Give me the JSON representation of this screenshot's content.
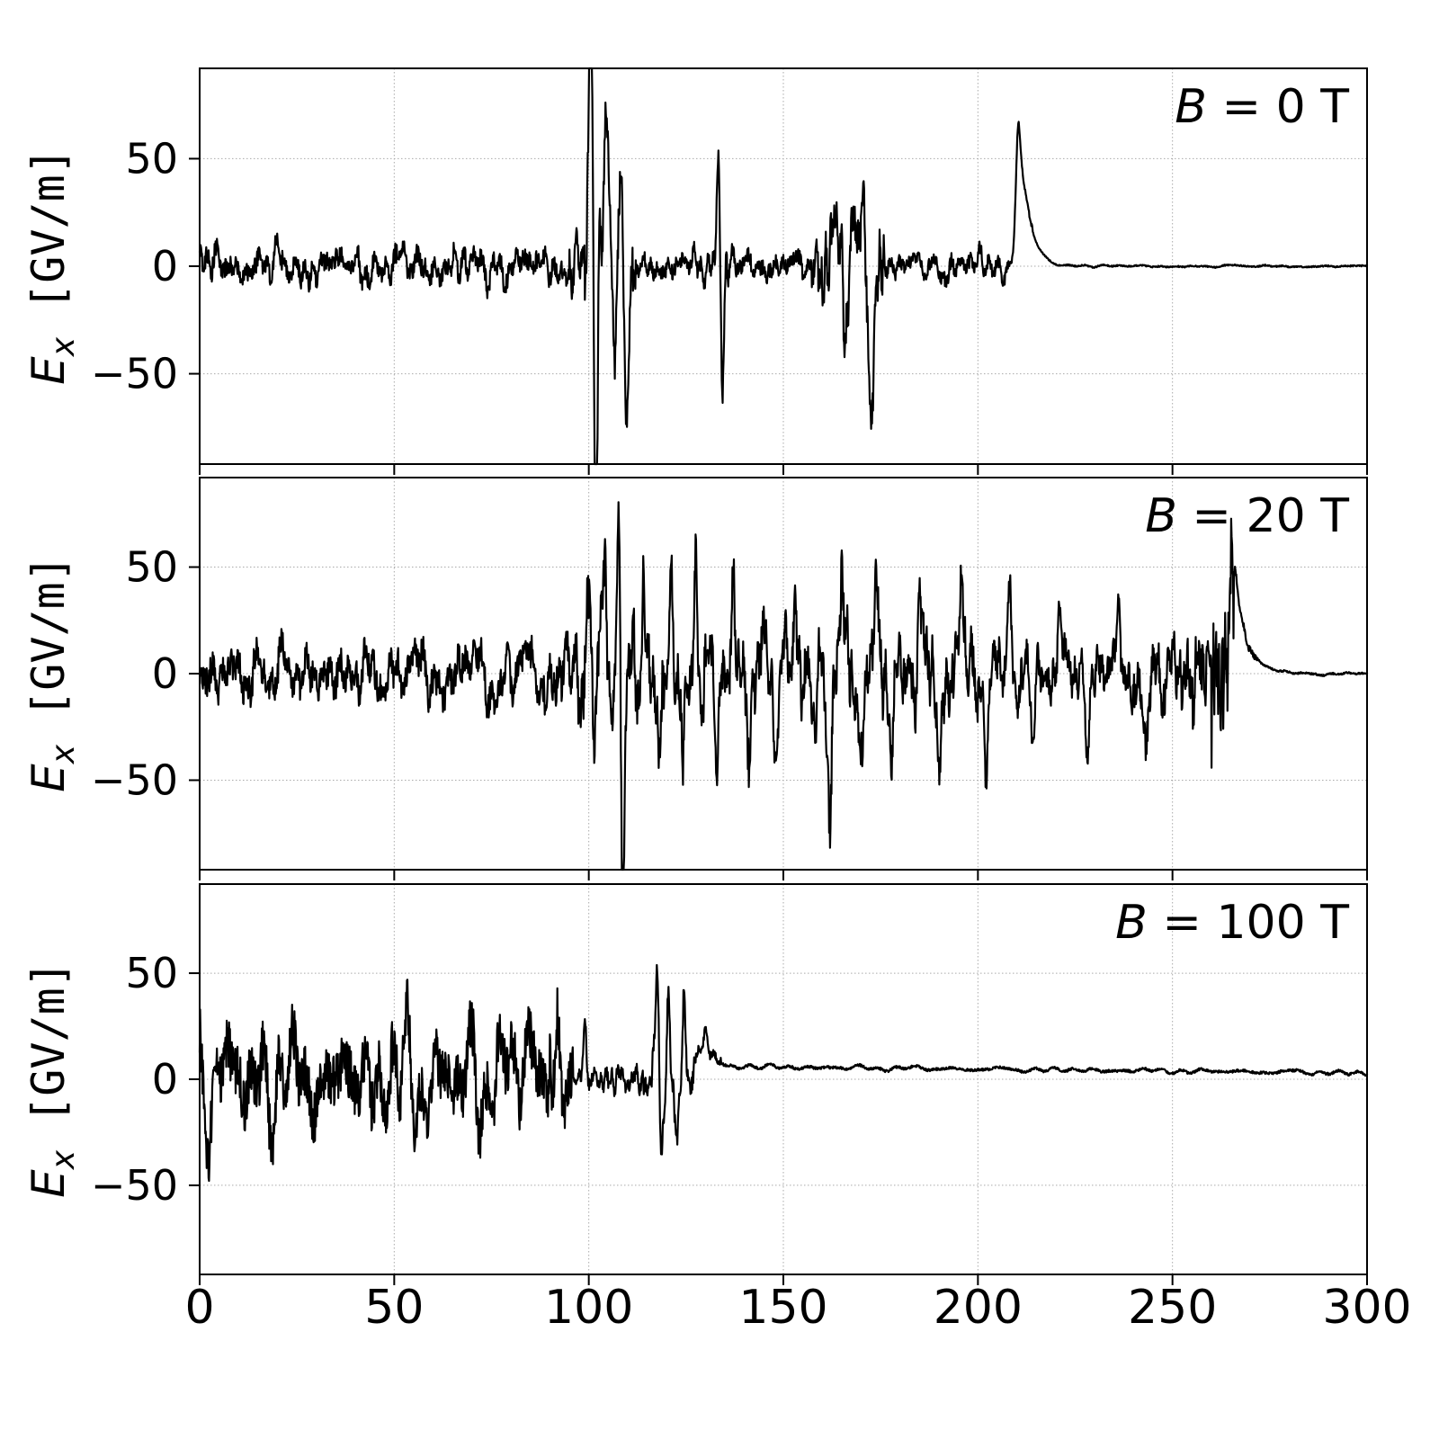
{
  "figure": {
    "background": "#ffffff",
    "line_color": "#000000",
    "grid_color": "#aaaaaa",
    "x_range": [
      0,
      300
    ],
    "x_ticks": [
      0,
      50,
      100,
      150,
      200,
      250,
      300
    ],
    "y_ticks": [
      -50,
      0,
      50
    ],
    "ylabel": {
      "symbol": "E",
      "subscript": "x",
      "units": " [GV/m]"
    }
  },
  "chart_data": [
    {
      "type": "line",
      "label": {
        "symbol": "B",
        "rest": " = 0 T"
      },
      "x_range": [
        0,
        300
      ],
      "y_range": [
        -92,
        92
      ],
      "seed": 7,
      "segments": [
        {
          "x0": 0,
          "x1": 95,
          "amp": 9,
          "freq": 1.0,
          "base0": 0,
          "base1": 0
        },
        {
          "x0": 95,
          "x1": 99,
          "amp": 12,
          "freq": 1.2,
          "base0": 0,
          "base1": 0
        },
        {
          "x0": 99,
          "x1": 112,
          "amp": 20,
          "freq": 1.6,
          "base0": 0,
          "base1": 0
        },
        {
          "x0": 112,
          "x1": 131,
          "amp": 7,
          "freq": 1.2,
          "base0": 0,
          "base1": 0
        },
        {
          "x0": 131,
          "x1": 136,
          "amp": 11,
          "freq": 1.5,
          "base0": 0,
          "base1": 0
        },
        {
          "x0": 136,
          "x1": 157,
          "amp": 7,
          "freq": 1.2,
          "base0": 0,
          "base1": 0
        },
        {
          "x0": 157,
          "x1": 176,
          "amp": 17,
          "freq": 1.8,
          "base0": 0,
          "base1": 0
        },
        {
          "x0": 176,
          "x1": 208,
          "amp": 7,
          "freq": 1.0,
          "base0": 0,
          "base1": 0
        },
        {
          "x0": 208,
          "x1": 214,
          "amp": 2,
          "freq": 1.0,
          "base0": 0,
          "base1": 0
        },
        {
          "x0": 214,
          "x1": 300,
          "amp": 0.6,
          "freq": 0.5,
          "base0": 0,
          "base1": 0
        }
      ],
      "spikes": [
        {
          "x": 100.5,
          "y": 150,
          "wl": 0.5,
          "wr": 0.4,
          "decay": false
        },
        {
          "x": 101.8,
          "y": -150,
          "wl": 0.35,
          "wr": 0.4,
          "decay": false
        },
        {
          "x": 104.5,
          "y": 72,
          "wl": 0.6,
          "wr": 0.5,
          "decay": false
        },
        {
          "x": 106.5,
          "y": -38,
          "wl": 0.4,
          "wr": 0.4,
          "decay": false
        },
        {
          "x": 108.2,
          "y": 48,
          "wl": 0.4,
          "wr": 0.4,
          "decay": false
        },
        {
          "x": 109.8,
          "y": -68,
          "wl": 0.4,
          "wr": 0.5,
          "decay": false
        },
        {
          "x": 133.2,
          "y": 50,
          "wl": 0.35,
          "wr": 0.35,
          "decay": false
        },
        {
          "x": 134.3,
          "y": -56,
          "wl": 0.4,
          "wr": 0.4,
          "decay": false
        },
        {
          "x": 163,
          "y": 25,
          "wl": 0.8,
          "wr": 0.8,
          "decay": false
        },
        {
          "x": 166,
          "y": -30,
          "wl": 0.7,
          "wr": 0.7,
          "decay": false
        },
        {
          "x": 168.5,
          "y": 33,
          "wl": 0.6,
          "wr": 0.6,
          "decay": false
        },
        {
          "x": 170.5,
          "y": 36,
          "wl": 0.6,
          "wr": 0.6,
          "decay": false
        },
        {
          "x": 172.5,
          "y": -68,
          "wl": 0.7,
          "wr": 0.9,
          "decay": false
        },
        {
          "x": 210.5,
          "y": 68,
          "wl": 0.7,
          "wr": 2.5,
          "decay": true
        }
      ]
    },
    {
      "type": "line",
      "label": {
        "symbol": "B",
        "rest": " = 20 T"
      },
      "x_range": [
        0,
        300
      ],
      "y_range": [
        -92,
        92
      ],
      "seed": 13,
      "segments": [
        {
          "x0": 0,
          "x1": 88,
          "amp": 14,
          "freq": 0.9,
          "base0": 0,
          "base1": 0
        },
        {
          "x0": 88,
          "x1": 97,
          "amp": 18,
          "freq": 0.9,
          "base0": 0,
          "base1": 0
        },
        {
          "x0": 97,
          "x1": 150,
          "amp": 22,
          "freq": 1.6,
          "base0": 0,
          "base1": 0
        },
        {
          "x0": 150,
          "x1": 200,
          "amp": 20,
          "freq": 1.6,
          "base0": 0,
          "base1": 0
        },
        {
          "x0": 200,
          "x1": 240,
          "amp": 13,
          "freq": 1.4,
          "base0": 0,
          "base1": 0
        },
        {
          "x0": 240,
          "x1": 252,
          "amp": 16,
          "freq": 1.5,
          "base0": 0,
          "base1": 0
        },
        {
          "x0": 252,
          "x1": 260,
          "amp": 20,
          "freq": 2.0,
          "base0": 0,
          "base1": 0
        },
        {
          "x0": 260,
          "x1": 266,
          "amp": 36,
          "freq": 2.4,
          "base0": 0,
          "base1": 0
        },
        {
          "x0": 266,
          "x1": 272,
          "amp": 3,
          "freq": 1.0,
          "base0": 0,
          "base1": 0
        },
        {
          "x0": 272,
          "x1": 300,
          "amp": 0.8,
          "freq": 0.5,
          "base0": 0,
          "base1": 0
        }
      ],
      "spikes": [
        {
          "x": 100,
          "y": 55,
          "wl": 0.4,
          "wr": 0.4,
          "decay": false
        },
        {
          "x": 101.5,
          "y": -45,
          "wl": 0.4,
          "wr": 0.4,
          "decay": false
        },
        {
          "x": 104,
          "y": 52,
          "wl": 0.5,
          "wr": 0.5,
          "decay": false
        },
        {
          "x": 107.5,
          "y": 70,
          "wl": 0.4,
          "wr": 0.4,
          "decay": false
        },
        {
          "x": 108.8,
          "y": -120,
          "wl": 0.4,
          "wr": 0.4,
          "decay": false
        },
        {
          "x": 114,
          "y": 50,
          "wl": 0.4,
          "wr": 0.4,
          "decay": false
        },
        {
          "x": 118,
          "y": -48,
          "wl": 0.5,
          "wr": 0.5,
          "decay": false
        },
        {
          "x": 121,
          "y": 52,
          "wl": 0.4,
          "wr": 0.4,
          "decay": false
        },
        {
          "x": 124,
          "y": -50,
          "wl": 0.5,
          "wr": 0.5,
          "decay": false
        },
        {
          "x": 127.5,
          "y": 54,
          "wl": 0.4,
          "wr": 0.4,
          "decay": false
        },
        {
          "x": 133,
          "y": -42,
          "wl": 0.5,
          "wr": 0.5,
          "decay": false
        },
        {
          "x": 137,
          "y": 45,
          "wl": 0.5,
          "wr": 0.5,
          "decay": false
        },
        {
          "x": 141,
          "y": -40,
          "wl": 0.5,
          "wr": 0.5,
          "decay": false
        },
        {
          "x": 145,
          "y": 50,
          "wl": 0.4,
          "wr": 0.4,
          "decay": false
        },
        {
          "x": 148,
          "y": -44,
          "wl": 0.5,
          "wr": 0.5,
          "decay": false
        },
        {
          "x": 153,
          "y": 45,
          "wl": 0.5,
          "wr": 0.5,
          "decay": false
        },
        {
          "x": 158,
          "y": -40,
          "wl": 0.5,
          "wr": 0.5,
          "decay": false
        },
        {
          "x": 162,
          "y": -58,
          "wl": 0.5,
          "wr": 0.5,
          "decay": false
        },
        {
          "x": 165,
          "y": 52,
          "wl": 0.4,
          "wr": 0.4,
          "decay": false
        },
        {
          "x": 170,
          "y": -45,
          "wl": 0.5,
          "wr": 0.5,
          "decay": false
        },
        {
          "x": 174,
          "y": 46,
          "wl": 0.5,
          "wr": 0.5,
          "decay": false
        },
        {
          "x": 178,
          "y": -38,
          "wl": 0.5,
          "wr": 0.5,
          "decay": false
        },
        {
          "x": 185,
          "y": 42,
          "wl": 0.5,
          "wr": 0.5,
          "decay": false
        },
        {
          "x": 190,
          "y": -40,
          "wl": 0.5,
          "wr": 0.5,
          "decay": false
        },
        {
          "x": 196,
          "y": 44,
          "wl": 0.5,
          "wr": 0.5,
          "decay": false
        },
        {
          "x": 202,
          "y": -38,
          "wl": 0.5,
          "wr": 0.5,
          "decay": false
        },
        {
          "x": 208,
          "y": 40,
          "wl": 0.5,
          "wr": 0.5,
          "decay": false
        },
        {
          "x": 214,
          "y": -36,
          "wl": 0.5,
          "wr": 0.5,
          "decay": false
        },
        {
          "x": 221,
          "y": 34,
          "wl": 0.5,
          "wr": 0.5,
          "decay": false
        },
        {
          "x": 228,
          "y": -30,
          "wl": 0.5,
          "wr": 0.5,
          "decay": false
        },
        {
          "x": 236,
          "y": 28,
          "wl": 0.5,
          "wr": 0.5,
          "decay": false
        },
        {
          "x": 243,
          "y": -34,
          "wl": 0.8,
          "wr": 0.8,
          "decay": false
        },
        {
          "x": 265.5,
          "y": 57,
          "wl": 0.6,
          "wr": 3.0,
          "decay": true
        }
      ]
    },
    {
      "type": "line",
      "label": {
        "symbol": "B",
        "rest": " = 100 T"
      },
      "x_range": [
        0,
        300
      ],
      "y_range": [
        -92,
        92
      ],
      "seed": 21,
      "segments": [
        {
          "x0": 0,
          "x1": 90,
          "amp": 26,
          "freq": 0.55,
          "base0": 0,
          "base1": 0
        },
        {
          "x0": 90,
          "x1": 96,
          "amp": 28,
          "freq": 0.8,
          "base0": 0,
          "base1": 0
        },
        {
          "x0": 96,
          "x1": 114,
          "amp": 6,
          "freq": 1.4,
          "base0": 0,
          "base1": 0
        },
        {
          "x0": 114,
          "x1": 127,
          "amp": 10,
          "freq": 1.6,
          "base0": 0,
          "base1": 0
        },
        {
          "x0": 127,
          "x1": 134,
          "amp": 4,
          "freq": 1.0,
          "base0": 8,
          "base1": 6
        },
        {
          "x0": 134,
          "x1": 300,
          "amp": 1.2,
          "freq": 0.4,
          "base0": 6,
          "base1": 3
        }
      ],
      "spikes": [
        {
          "x": 84,
          "y": 30,
          "wl": 1.0,
          "wr": 1.0,
          "decay": false
        },
        {
          "x": 99,
          "y": 28,
          "wl": 0.4,
          "wr": 0.4,
          "decay": false
        },
        {
          "x": 117.5,
          "y": 58,
          "wl": 0.4,
          "wr": 0.4,
          "decay": false
        },
        {
          "x": 118.8,
          "y": -40,
          "wl": 0.5,
          "wr": 0.5,
          "decay": false
        },
        {
          "x": 120.5,
          "y": 44,
          "wl": 0.4,
          "wr": 0.4,
          "decay": false
        },
        {
          "x": 122.5,
          "y": -34,
          "wl": 0.5,
          "wr": 0.5,
          "decay": false
        },
        {
          "x": 124.5,
          "y": 40,
          "wl": 0.4,
          "wr": 0.4,
          "decay": false
        },
        {
          "x": 130,
          "y": 14,
          "wl": 1.2,
          "wr": 2.0,
          "decay": true
        }
      ]
    }
  ]
}
